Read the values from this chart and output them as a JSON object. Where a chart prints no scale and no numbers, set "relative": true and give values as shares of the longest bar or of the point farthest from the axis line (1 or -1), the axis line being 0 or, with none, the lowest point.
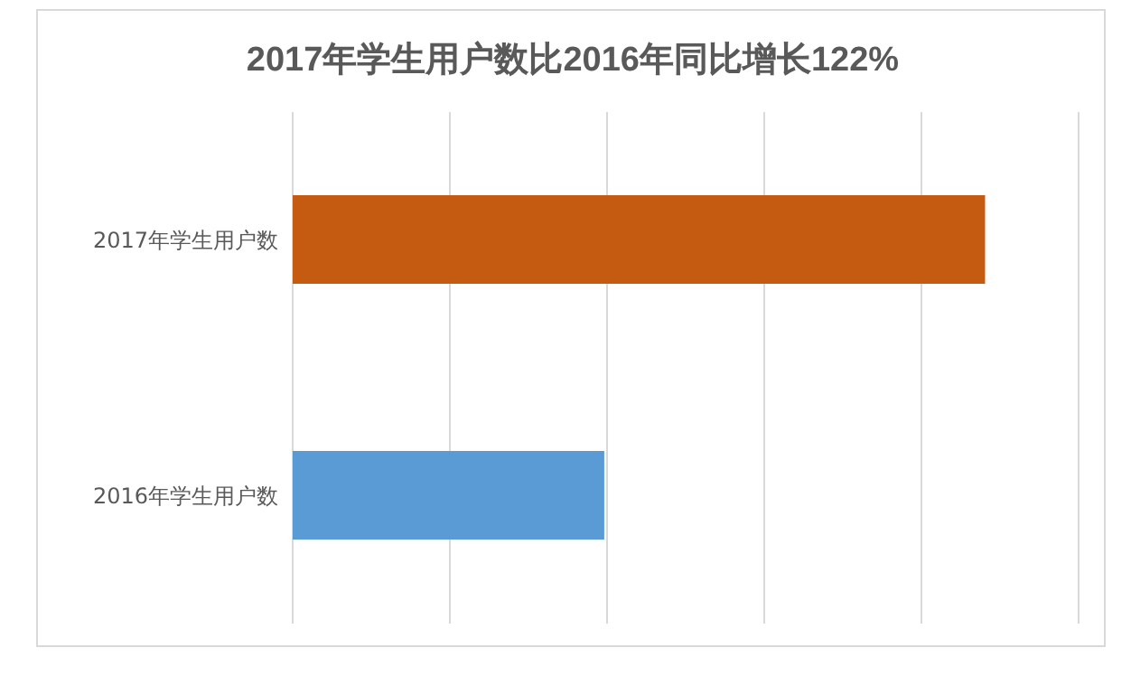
{
  "chart_data": {
    "type": "bar",
    "orientation": "horizontal",
    "relative": true,
    "title": "2017年学生用户数比2016年同比增长122%",
    "categories": [
      "2017年学生用户数",
      "2016年学生用户数"
    ],
    "values": [
      1,
      0.45
    ],
    "colors": [
      "#c55a11",
      "#5b9bd5"
    ],
    "grid": "x"
  }
}
